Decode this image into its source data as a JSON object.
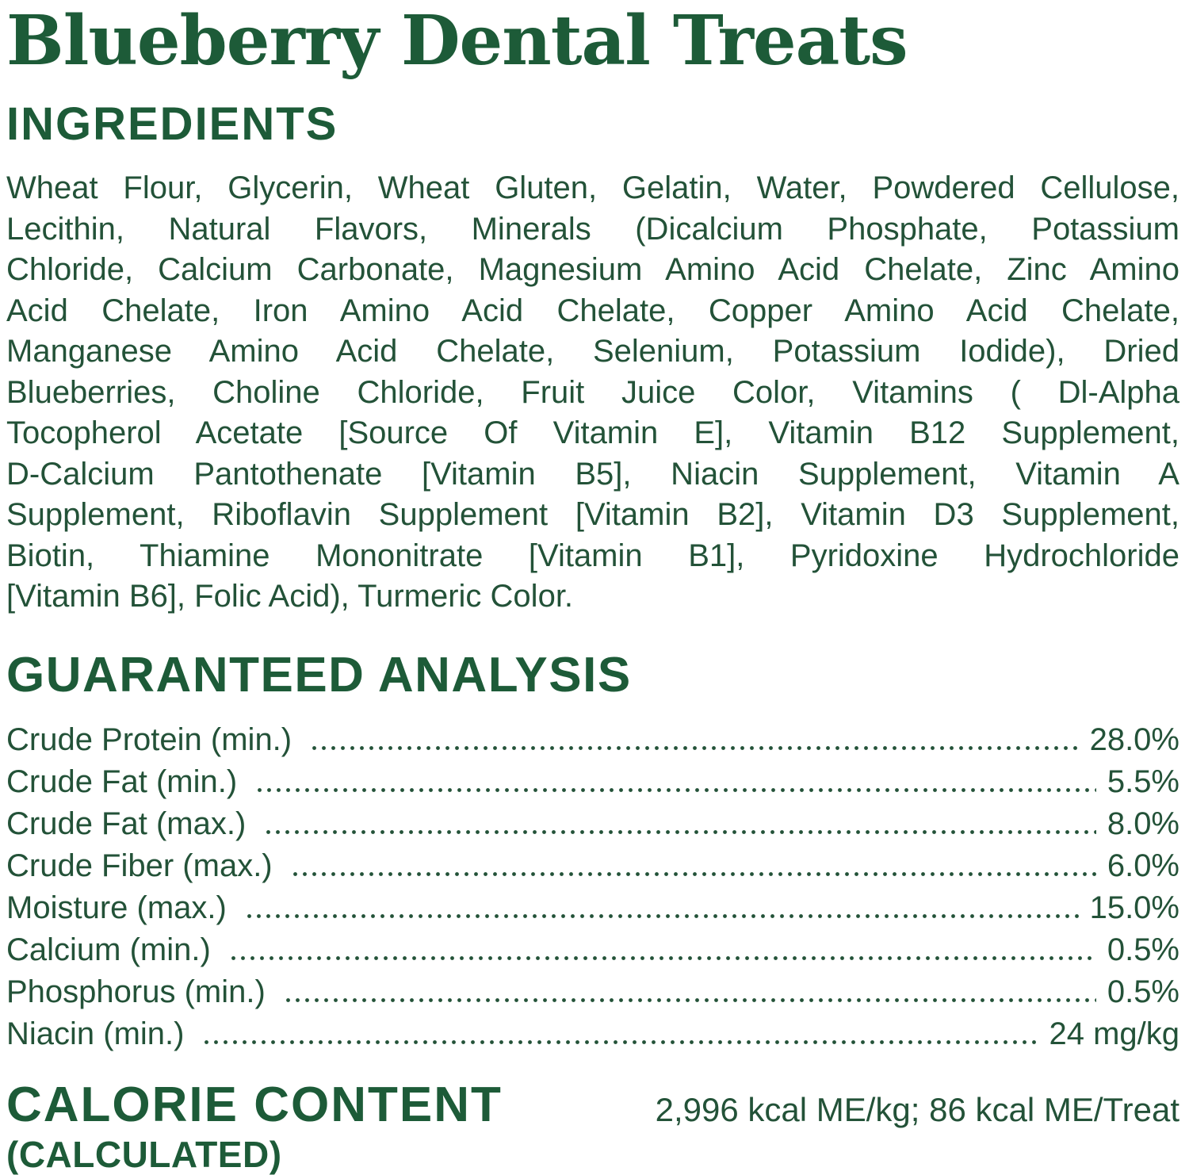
{
  "colors": {
    "heading_green": "#1d5b38",
    "body_green": "#235238",
    "background": "#ffffff"
  },
  "header": {
    "title": "Blueberry Dental Treats"
  },
  "ingredients": {
    "heading": "INGREDIENTS",
    "lines": [
      "Wheat Flour, Glycerin, Wheat Gluten, Gelatin, Water, Powdered Cellulose,",
      "Lecithin, Natural Flavors, Minerals (Dicalcium Phosphate, Potassium",
      "Chloride, Calcium Carbonate, Magnesium Amino Acid Chelate, Zinc Amino",
      "Acid Chelate, Iron Amino Acid Chelate, Copper Amino Acid Chelate,",
      "Manganese Amino Acid Chelate, Selenium, Potassium Iodide), Dried",
      "Blueberries, Choline Chloride, Fruit Juice Color, Vitamins ( Dl-Alpha",
      "Tocopherol Acetate [Source Of Vitamin E], Vitamin B12 Supplement,",
      "D-Calcium Pantothenate [Vitamin B5], Niacin Supplement, Vitamin A",
      "Supplement, Riboflavin Supplement [Vitamin B2], Vitamin D3 Supplement,",
      "Biotin, Thiamine Mononitrate [Vitamin B1], Pyridoxine Hydrochloride",
      "[Vitamin B6], Folic Acid), Turmeric Color."
    ]
  },
  "guaranteed_analysis": {
    "heading": "GUARANTEED ANALYSIS",
    "rows": [
      {
        "label": "Crude Protein (min.)",
        "value": "28.0%"
      },
      {
        "label": "Crude Fat (min.)",
        "value": "5.5%"
      },
      {
        "label": "Crude Fat (max.)",
        "value": "8.0%"
      },
      {
        "label": "Crude Fiber (max.)",
        "value": "6.0%"
      },
      {
        "label": "Moisture (max.)",
        "value": "15.0%"
      },
      {
        "label": "Calcium (min.)",
        "value": "0.5%"
      },
      {
        "label": "Phosphorus (min.)",
        "value": "0.5%"
      },
      {
        "label": "Niacin (min.)",
        "value": "24 mg/kg"
      }
    ]
  },
  "calorie_content": {
    "heading_line1": "CALORIE CONTENT",
    "heading_line2": "(CALCULATED)",
    "value": "2,996 kcal ME/kg; 86 kcal ME/Treat"
  }
}
